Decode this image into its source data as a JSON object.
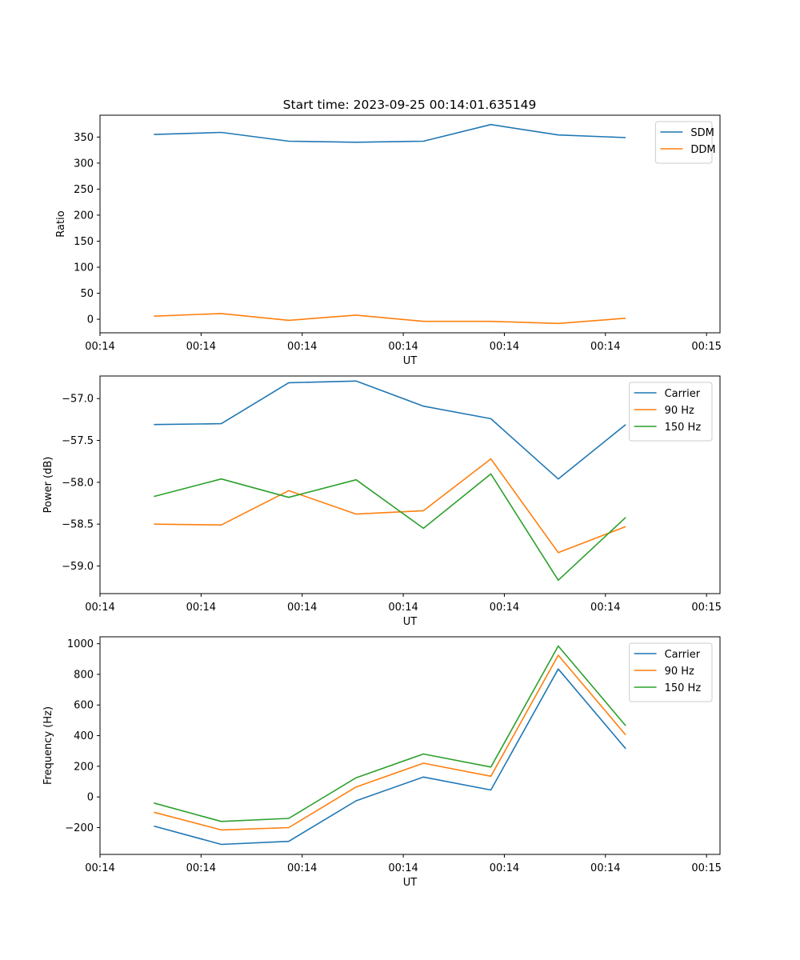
{
  "title": "Start time: 2023-09-25 00:14:01.635149",
  "colors": {
    "series1": "#1f77b4",
    "series2": "#ff7f0e",
    "series3": "#2ca02c"
  },
  "chart_data": [
    {
      "type": "line",
      "xlabel": "UT",
      "ylabel": "Ratio",
      "x": [
        1,
        2,
        3,
        4,
        5,
        6,
        7,
        8
      ],
      "xlim": [
        0.2,
        9.4
      ],
      "x_ticks": [
        0.2,
        1.7,
        3.2,
        4.7,
        6.2,
        7.7,
        9.2
      ],
      "x_tick_labels": [
        "00:14",
        "00:14",
        "00:14",
        "00:14",
        "00:14",
        "00:14",
        "00:15"
      ],
      "ylim": [
        -26,
        392
      ],
      "y_ticks": [
        0,
        50,
        100,
        150,
        200,
        250,
        300,
        350
      ],
      "y_tick_labels": [
        "0",
        "50",
        "100",
        "150",
        "200",
        "250",
        "300",
        "350"
      ],
      "legend": "upper right",
      "series": [
        {
          "name": "SDM",
          "color": "#1f77b4",
          "values": [
            355,
            359,
            342,
            340,
            342,
            374,
            354,
            349
          ]
        },
        {
          "name": "DDM",
          "color": "#ff7f0e",
          "values": [
            6,
            11,
            -2,
            8,
            -4,
            -4,
            -8,
            2
          ]
        }
      ]
    },
    {
      "type": "line",
      "xlabel": "UT",
      "ylabel": "Power (dB)",
      "x": [
        1,
        2,
        3,
        4,
        5,
        6,
        7,
        8
      ],
      "xlim": [
        0.2,
        9.4
      ],
      "x_ticks": [
        0.2,
        1.7,
        3.2,
        4.7,
        6.2,
        7.7,
        9.2
      ],
      "x_tick_labels": [
        "00:14",
        "00:14",
        "00:14",
        "00:14",
        "00:14",
        "00:14",
        "00:15"
      ],
      "ylim": [
        -59.33,
        -56.73
      ],
      "y_ticks": [
        -59.0,
        -58.5,
        -58.0,
        -57.5,
        -57.0
      ],
      "y_tick_labels": [
        "−59.0",
        "−58.5",
        "−58.0",
        "−57.5",
        "−57.0"
      ],
      "legend": "upper right",
      "series": [
        {
          "name": "Carrier",
          "color": "#1f77b4",
          "values": [
            -57.31,
            -57.3,
            -56.81,
            -56.79,
            -57.09,
            -57.24,
            -57.96,
            -57.31
          ]
        },
        {
          "name": "90 Hz",
          "color": "#ff7f0e",
          "values": [
            -58.5,
            -58.51,
            -58.1,
            -58.38,
            -58.34,
            -57.72,
            -58.84,
            -58.53
          ]
        },
        {
          "name": "150 Hz",
          "color": "#2ca02c",
          "values": [
            -58.17,
            -57.96,
            -58.18,
            -57.97,
            -58.55,
            -57.9,
            -59.17,
            -58.42
          ]
        }
      ]
    },
    {
      "type": "line",
      "xlabel": "UT",
      "ylabel": "Frequency (Hz)",
      "x": [
        1,
        2,
        3,
        4,
        5,
        6,
        7,
        8
      ],
      "xlim": [
        0.2,
        9.4
      ],
      "x_ticks": [
        0.2,
        1.7,
        3.2,
        4.7,
        6.2,
        7.7,
        9.2
      ],
      "x_tick_labels": [
        "00:14",
        "00:14",
        "00:14",
        "00:14",
        "00:14",
        "00:14",
        "00:15"
      ],
      "ylim": [
        -375,
        1045
      ],
      "y_ticks": [
        -200,
        0,
        200,
        400,
        600,
        800,
        1000
      ],
      "y_tick_labels": [
        "−200",
        "0",
        "200",
        "400",
        "600",
        "800",
        "1000"
      ],
      "legend": "upper right",
      "series": [
        {
          "name": "Carrier",
          "color": "#1f77b4",
          "values": [
            -190,
            -310,
            -290,
            -25,
            130,
            45,
            835,
            315
          ]
        },
        {
          "name": "90 Hz",
          "color": "#ff7f0e",
          "values": [
            -100,
            -215,
            -200,
            65,
            220,
            135,
            925,
            405
          ]
        },
        {
          "name": "150 Hz",
          "color": "#2ca02c",
          "values": [
            -40,
            -160,
            -140,
            125,
            280,
            195,
            985,
            465
          ]
        }
      ]
    }
  ]
}
